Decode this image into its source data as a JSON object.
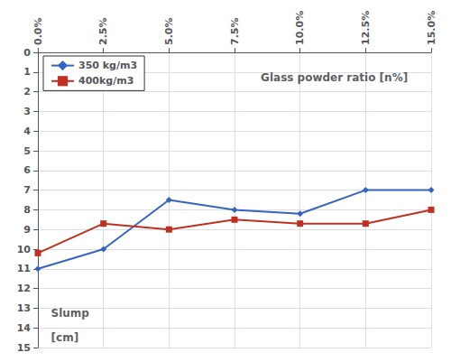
{
  "chart_data": {
    "type": "line",
    "x": [
      0.0,
      2.5,
      5.0,
      7.5,
      10.0,
      12.5,
      15.0
    ],
    "xlim": [
      0.0,
      15.0
    ],
    "xticks": [
      {
        "value": 0.0,
        "label": "0.0%"
      },
      {
        "value": 2.5,
        "label": "2.5%"
      },
      {
        "value": 5.0,
        "label": "5.0%"
      },
      {
        "value": 7.5,
        "label": "7.5%"
      },
      {
        "value": 10.0,
        "label": "10.0%"
      },
      {
        "value": 12.5,
        "label": "12.5%"
      },
      {
        "value": 15.0,
        "label": "15.0%"
      }
    ],
    "ylim": [
      15,
      0
    ],
    "yticks": [
      0,
      1,
      2,
      3,
      4,
      5,
      6,
      7,
      8,
      9,
      10,
      11,
      12,
      13,
      14,
      15
    ],
    "grid": true,
    "legend": "upper left",
    "series": [
      {
        "name": "350 kg/m3",
        "color": "#3465C0",
        "marker": "diamond",
        "values": [
          11.0,
          10.0,
          7.5,
          8.0,
          8.2,
          7.0,
          7.0
        ]
      },
      {
        "name": "400kg/m3",
        "color": "#C03020",
        "marker": "square",
        "values": [
          10.2,
          8.7,
          9.0,
          8.5,
          8.7,
          8.7,
          8.0
        ]
      }
    ],
    "annotations": [
      {
        "text": "Glass powder ratio [n%]",
        "x": 8.5,
        "y": 1.0
      },
      {
        "text": "Slump",
        "x": 0.5,
        "y": 13.0
      },
      {
        "text": "[cm]",
        "x": 0.5,
        "y": 14.2
      }
    ]
  }
}
